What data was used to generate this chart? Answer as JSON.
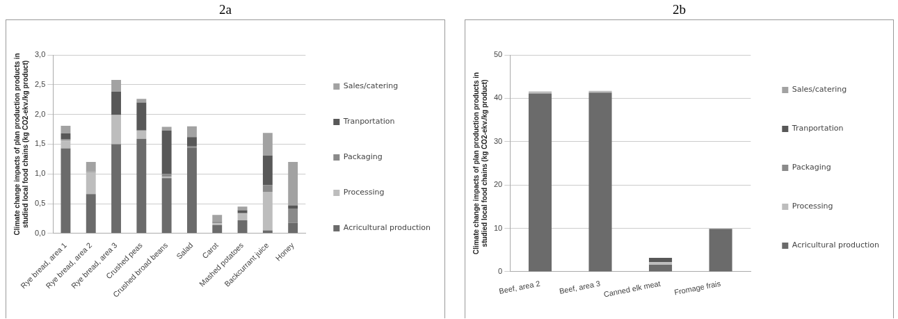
{
  "chart_data": [
    {
      "type": "bar",
      "title": "2a",
      "ylabel": "Climate change impacts of plan production products in studied local food chains (kg CO2-ekv./kg product)",
      "stacked": true,
      "grid": "y",
      "legend": "right",
      "categories": [
        "Rye bread, area 1",
        "Rye bread, area 2",
        "Rye bread, area 3",
        "Crushed peas",
        "Crushed broad beans",
        "Salad",
        "Carot",
        "Mashed potatoes",
        "Backcurrant juice",
        "Honey"
      ],
      "ylim": [
        0,
        3
      ],
      "yticks": [
        {
          "value": 0,
          "label": "0,0"
        },
        {
          "value": 0.5,
          "label": "0,5"
        },
        {
          "value": 1,
          "label": "1,0"
        },
        {
          "value": 1.5,
          "label": "1,5"
        },
        {
          "value": 2,
          "label": "2,0"
        },
        {
          "value": 2.5,
          "label": "2,5"
        },
        {
          "value": 3,
          "label": "3,0"
        }
      ],
      "series": [
        {
          "name": "Acricultural production",
          "color": "#6b6b6b",
          "values": [
            1.43,
            0.66,
            1.5,
            1.59,
            0.93,
            1.44,
            0.14,
            0.22,
            0.05,
            0.18
          ]
        },
        {
          "name": "Processing",
          "color": "#bdbdbd",
          "values": [
            0.13,
            0.37,
            0.49,
            0.14,
            0.02,
            null,
            0.03,
            0.11,
            0.65,
            null
          ]
        },
        {
          "name": "Packaging",
          "color": "#8a8a8a",
          "values": [
            0.02,
            0.01,
            0,
            0,
            0.05,
            0.03,
            0.02,
            0.02,
            0.11,
            0.24
          ]
        },
        {
          "name": "Tranportation",
          "color": "#585858",
          "values": [
            0.1,
            0,
            0.39,
            0.47,
            0.73,
            0.15,
            0.01,
            0.04,
            0.5,
            0.05
          ]
        },
        {
          "name": "Sales/catering",
          "color": "#a2a2a2",
          "values": [
            0.13,
            0.16,
            0.2,
            0.06,
            0.06,
            0.18,
            0.11,
            0.06,
            0.38,
            0.73
          ]
        }
      ]
    },
    {
      "type": "bar",
      "title": "2b",
      "ylabel": "Climate change impacts of plan production products in studied local food chains (kg CO2-ekv./kg product)",
      "stacked": true,
      "grid": "y",
      "legend": "right",
      "categories": [
        "Beef, area 2",
        "Beef, area 3",
        "Canned elk meat",
        "Fromage frais"
      ],
      "ylim": [
        0,
        50
      ],
      "yticks": [
        0,
        10,
        20,
        30,
        40,
        50
      ],
      "series": [
        {
          "name": "Acricultural production",
          "color": "#6b6b6b",
          "values": [
            41.1,
            41.3,
            1.6,
            9.9
          ]
        },
        {
          "name": "Processing",
          "color": "#bdbdbd",
          "values": [
            0.5,
            0.4,
            0.6,
            0
          ]
        },
        {
          "name": "Packaging",
          "color": "#8a8a8a",
          "values": [
            0,
            0,
            0,
            0
          ]
        },
        {
          "name": "Tranportation",
          "color": "#585858",
          "values": [
            0,
            0,
            1,
            0
          ]
        },
        {
          "name": "Sales/catering",
          "color": "#a2a2a2",
          "values": [
            0,
            0,
            0,
            0
          ]
        }
      ]
    }
  ]
}
